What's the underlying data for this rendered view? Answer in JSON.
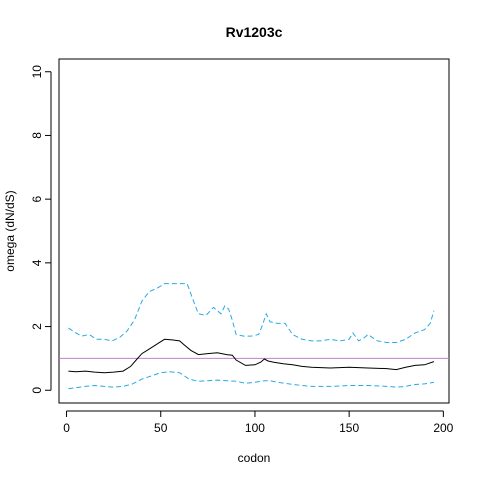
{
  "chart_data": {
    "type": "line",
    "title": "Rv1203c",
    "xlabel": "codon",
    "ylabel": "omega (dN/dS)",
    "xlim": [
      -4,
      203
    ],
    "ylim": [
      -0.4,
      10.4
    ],
    "xticks": [
      0,
      50,
      100,
      150,
      200
    ],
    "xtick_labels": [
      "0",
      "50",
      "100",
      "150",
      "200"
    ],
    "yticks": [
      0,
      2,
      4,
      6,
      8,
      10
    ],
    "ytick_labels": [
      "0",
      "2",
      "4",
      "6",
      "8",
      "10"
    ],
    "grid": false,
    "legend": "none",
    "reference_line": {
      "y": 1,
      "color": "#c080c8"
    },
    "series": [
      {
        "role": "upper",
        "style": "dashed",
        "color": "#29a9e0",
        "x": [
          1,
          5,
          8,
          12,
          16,
          20,
          24,
          28,
          32,
          36,
          40,
          44,
          48,
          52,
          56,
          60,
          64,
          68,
          70,
          74,
          78,
          82,
          84,
          86,
          88,
          90,
          94,
          98,
          102,
          104,
          106,
          108,
          112,
          116,
          120,
          125,
          130,
          135,
          140,
          145,
          150,
          152,
          155,
          158,
          160,
          165,
          170,
          175,
          180,
          185,
          190,
          193,
          195
        ],
        "y": [
          1.95,
          1.8,
          1.7,
          1.75,
          1.6,
          1.6,
          1.55,
          1.65,
          1.85,
          2.2,
          2.8,
          3.1,
          3.2,
          3.35,
          3.35,
          3.35,
          3.35,
          2.7,
          2.4,
          2.35,
          2.6,
          2.4,
          2.65,
          2.55,
          2.2,
          1.75,
          1.7,
          1.7,
          1.75,
          2.05,
          2.4,
          2.15,
          2.1,
          2.1,
          1.75,
          1.6,
          1.55,
          1.55,
          1.6,
          1.55,
          1.6,
          1.8,
          1.55,
          1.65,
          1.75,
          1.55,
          1.5,
          1.5,
          1.6,
          1.8,
          1.9,
          2.1,
          2.5
        ]
      },
      {
        "role": "estimate",
        "style": "solid",
        "color": "#000000",
        "x": [
          1,
          5,
          10,
          15,
          20,
          25,
          30,
          34,
          37,
          40,
          44,
          48,
          52,
          56,
          60,
          63,
          66,
          70,
          75,
          80,
          85,
          88,
          90,
          95,
          100,
          103,
          105,
          107,
          110,
          115,
          120,
          125,
          130,
          140,
          150,
          160,
          170,
          175,
          180,
          185,
          190,
          195
        ],
        "y": [
          0.6,
          0.58,
          0.6,
          0.57,
          0.55,
          0.57,
          0.6,
          0.75,
          0.95,
          1.15,
          1.3,
          1.45,
          1.6,
          1.58,
          1.55,
          1.4,
          1.25,
          1.12,
          1.15,
          1.18,
          1.12,
          1.1,
          0.95,
          0.78,
          0.8,
          0.88,
          0.98,
          0.92,
          0.88,
          0.83,
          0.8,
          0.75,
          0.72,
          0.7,
          0.72,
          0.7,
          0.68,
          0.65,
          0.72,
          0.78,
          0.8,
          0.9
        ]
      },
      {
        "role": "lower",
        "style": "dashed",
        "color": "#29a9e0",
        "x": [
          1,
          5,
          10,
          15,
          20,
          25,
          30,
          35,
          40,
          45,
          50,
          55,
          60,
          65,
          70,
          75,
          80,
          85,
          90,
          95,
          100,
          105,
          108,
          112,
          118,
          125,
          130,
          140,
          150,
          160,
          170,
          175,
          180,
          185,
          190,
          195
        ],
        "y": [
          0.05,
          0.08,
          0.12,
          0.15,
          0.12,
          0.1,
          0.12,
          0.2,
          0.35,
          0.45,
          0.55,
          0.58,
          0.55,
          0.35,
          0.28,
          0.3,
          0.32,
          0.3,
          0.28,
          0.22,
          0.25,
          0.3,
          0.3,
          0.25,
          0.2,
          0.15,
          0.12,
          0.12,
          0.15,
          0.15,
          0.12,
          0.1,
          0.12,
          0.18,
          0.2,
          0.25
        ]
      }
    ]
  }
}
